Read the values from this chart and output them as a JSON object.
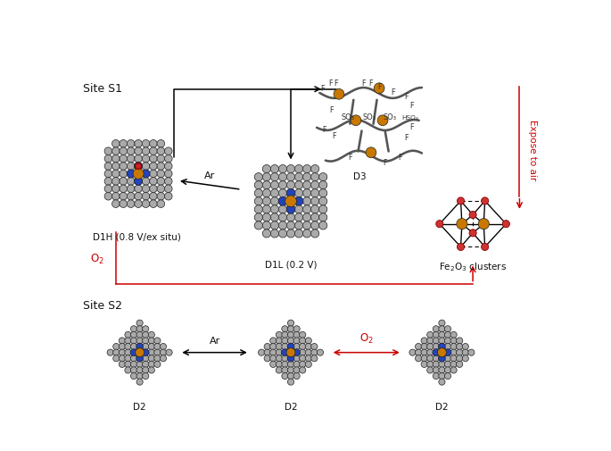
{
  "bg_color": "#ffffff",
  "site_s1_label": "Site S1",
  "site_s2_label": "Site S2",
  "d1h_label": "D1H (0.8 V/ex situ)",
  "d1l_label": "D1L (0.2 V)",
  "d2_label": "D2",
  "d3_label": "D3",
  "fe2o3_label": "Fe$_2$O$_3$ clusters",
  "expose_label": "Expose to air",
  "ar_label": "Ar",
  "o2_label": "O$_2$",
  "color_carbon": "#aaaaaa",
  "color_fe": "#c87800",
  "color_n_blue": "#2244bb",
  "color_n_red": "#cc2222",
  "color_o_red": "#cc2222",
  "arrow_black": "#111111",
  "arrow_red": "#cc0000",
  "ionomer_color": "#555555",
  "text_color": "#111111",
  "fe2o3_o_color": "#cc3333",
  "label_fontsize": 8.5,
  "small_fontsize": 7.0
}
